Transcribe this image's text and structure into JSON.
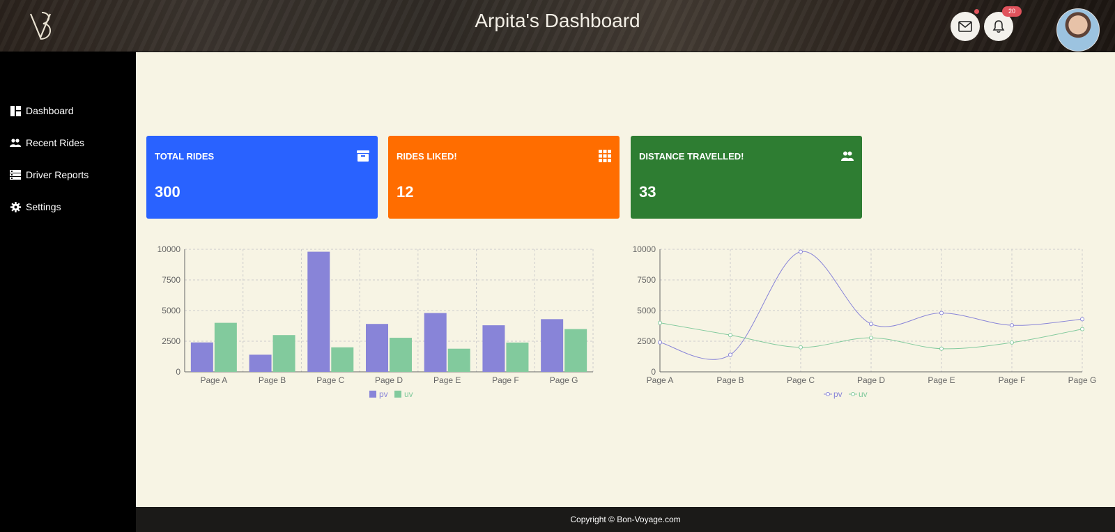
{
  "header": {
    "logo_text": "VB",
    "title": "Arpita's Dashboard",
    "mail_icon": "mail-icon",
    "bell_icon": "bell-icon",
    "notification_count": "20"
  },
  "sidebar": {
    "items": [
      {
        "label": "Dashboard",
        "icon": "dashboard-icon"
      },
      {
        "label": "Recent Rides",
        "icon": "people-icon"
      },
      {
        "label": "Driver Reports",
        "icon": "report-icon"
      },
      {
        "label": "Settings",
        "icon": "gear-icon"
      }
    ]
  },
  "cards": [
    {
      "label": "TOTAL RIDES",
      "value": "300",
      "icon": "archive-icon",
      "color": "#2962ff"
    },
    {
      "label": "RIDES LIKED!",
      "value": "12",
      "icon": "grid-icon",
      "color": "#ff6d00"
    },
    {
      "label": "DISTANCE TRAVELLED!",
      "value": "33",
      "icon": "people-icon",
      "color": "#2e7d32"
    }
  ],
  "chart_data": [
    {
      "type": "bar",
      "categories": [
        "Page A",
        "Page B",
        "Page C",
        "Page D",
        "Page E",
        "Page F",
        "Page G"
      ],
      "series": [
        {
          "name": "pv",
          "values": [
            2400,
            1398,
            9800,
            3908,
            4800,
            3800,
            4300
          ],
          "color": "#8884d8"
        },
        {
          "name": "uv",
          "values": [
            4000,
            3000,
            2000,
            2780,
            1890,
            2390,
            3490
          ],
          "color": "#82ca9d"
        }
      ],
      "ylim": [
        0,
        10000
      ],
      "yticks": [
        0,
        2500,
        5000,
        7500,
        10000
      ],
      "grid": true,
      "legend": "bottom-center"
    },
    {
      "type": "line",
      "categories": [
        "Page A",
        "Page B",
        "Page C",
        "Page D",
        "Page E",
        "Page F",
        "Page G"
      ],
      "series": [
        {
          "name": "pv",
          "values": [
            2400,
            1398,
            9800,
            3908,
            4800,
            3800,
            4300
          ],
          "color": "#8884d8"
        },
        {
          "name": "uv",
          "values": [
            4000,
            3000,
            2000,
            2780,
            1890,
            2390,
            3490
          ],
          "color": "#82ca9d"
        }
      ],
      "ylim": [
        0,
        10000
      ],
      "yticks": [
        0,
        2500,
        5000,
        7500,
        10000
      ],
      "grid": true,
      "legend": "bottom-center"
    }
  ],
  "footer": {
    "text": "Copyright © Bon-Voyage.com"
  }
}
